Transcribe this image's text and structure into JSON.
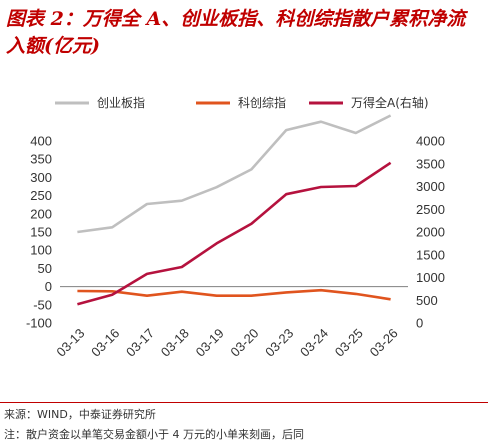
{
  "title": "图表 2：万得全 A、创业板指、科创综指散户累积净流入额(亿元)",
  "chart_data": {
    "type": "line",
    "x": [
      "03-13",
      "03-16",
      "03-17",
      "03-18",
      "03-19",
      "03-20",
      "03-23",
      "03-24",
      "03-25",
      "03-26"
    ],
    "series": [
      {
        "name": "创业板指",
        "axis": "left",
        "color": "#bfbfbf",
        "values": [
          150,
          163,
          227,
          236,
          273,
          322,
          430,
          453,
          422,
          470
        ]
      },
      {
        "name": "科创综指",
        "axis": "left",
        "color": "#e0541e",
        "values": [
          -12,
          -13,
          -25,
          -14,
          -25,
          -25,
          -16,
          -10,
          -20,
          -35
        ]
      },
      {
        "name": "万得全A(右轴)",
        "axis": "right",
        "color": "#b5123e",
        "values": [
          410,
          620,
          1080,
          1230,
          1750,
          2180,
          2830,
          2990,
          3010,
          3520
        ]
      }
    ],
    "y_left": {
      "lim": [
        -100,
        400
      ],
      "ticks": [
        "-100",
        "-50",
        "0",
        "50",
        "100",
        "150",
        "200",
        "250",
        "300",
        "350",
        "400"
      ]
    },
    "y_right": {
      "lim": [
        0,
        4000
      ],
      "ticks": [
        "0",
        "500",
        "1000",
        "1500",
        "2000",
        "2500",
        "3000",
        "3500",
        "4000"
      ]
    },
    "legend_placement": "top",
    "grid": false
  },
  "footer": {
    "source": "来源：WIND，中泰证券研究所",
    "note": "注：散户资金以单笔交易金额小于 4 万元的小单来刻画，后同"
  }
}
